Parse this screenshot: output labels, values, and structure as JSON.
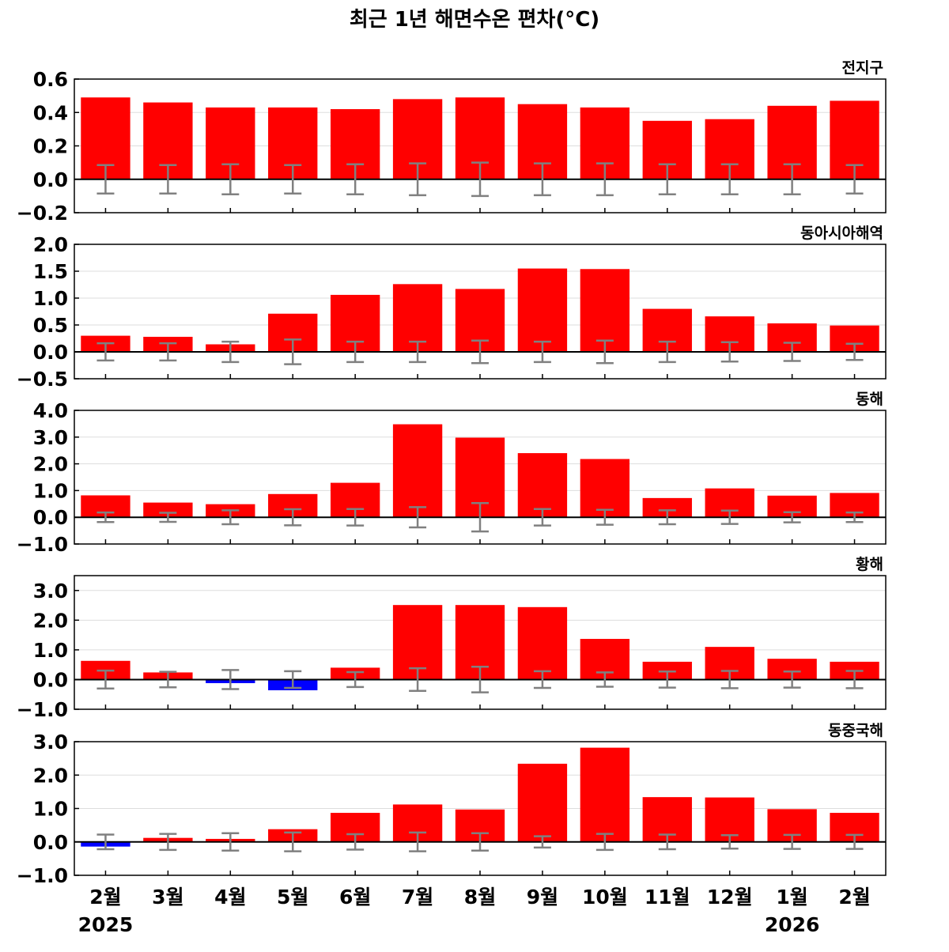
{
  "title": "최근 1년 해면수온 편차(°C)",
  "months": [
    "2월",
    "3월",
    "4월",
    "5월",
    "6월",
    "7월",
    "8월",
    "9월",
    "10월",
    "11월",
    "12월",
    "1월",
    "2월"
  ],
  "year_labels": [
    {
      "index": 0,
      "text": "2025"
    },
    {
      "index": 11,
      "text": "2026"
    }
  ],
  "colors": {
    "positive": "#ff0000",
    "negative": "#0000ff",
    "error_bar": "#808080",
    "zero_line": "#000000",
    "grid": "#dddddd"
  },
  "chart_data": [
    {
      "type": "bar",
      "region": "전지구",
      "categories": [
        "2월",
        "3월",
        "4월",
        "5월",
        "6월",
        "7월",
        "8월",
        "9월",
        "10월",
        "11월",
        "12월",
        "1월",
        "2월"
      ],
      "values": [
        0.49,
        0.46,
        0.43,
        0.43,
        0.42,
        0.48,
        0.49,
        0.45,
        0.43,
        0.35,
        0.36,
        0.44,
        0.47
      ],
      "error_range": [
        0.085,
        0.085,
        0.09,
        0.085,
        0.09,
        0.095,
        0.1,
        0.095,
        0.095,
        0.09,
        0.09,
        0.09,
        0.085
      ],
      "ylim": [
        -0.2,
        0.6
      ],
      "yticks": [
        -0.2,
        0.0,
        0.2,
        0.4,
        0.6
      ],
      "ytick_labels": [
        "−0.2",
        "0.0",
        "0.2",
        "0.4",
        "0.6"
      ],
      "grid": true
    },
    {
      "type": "bar",
      "region": "동아시아해역",
      "categories": [
        "2월",
        "3월",
        "4월",
        "5월",
        "6월",
        "7월",
        "8월",
        "9월",
        "10월",
        "11월",
        "12월",
        "1월",
        "2월"
      ],
      "values": [
        0.3,
        0.28,
        0.14,
        0.71,
        1.06,
        1.26,
        1.17,
        1.55,
        1.54,
        0.8,
        0.66,
        0.53,
        0.49
      ],
      "error_range": [
        0.16,
        0.16,
        0.19,
        0.23,
        0.19,
        0.19,
        0.21,
        0.19,
        0.21,
        0.19,
        0.18,
        0.17,
        0.15
      ],
      "ylim": [
        -0.5,
        2.0
      ],
      "yticks": [
        -0.5,
        0.0,
        0.5,
        1.0,
        1.5,
        2.0
      ],
      "ytick_labels": [
        "−0.5",
        "0.0",
        "0.5",
        "1.0",
        "1.5",
        "2.0"
      ],
      "grid": true
    },
    {
      "type": "bar",
      "region": "동해",
      "categories": [
        "2월",
        "3월",
        "4월",
        "5월",
        "6월",
        "7월",
        "8월",
        "9월",
        "10월",
        "11월",
        "12월",
        "1월",
        "2월"
      ],
      "values": [
        0.82,
        0.55,
        0.49,
        0.87,
        1.29,
        3.48,
        2.98,
        2.4,
        2.18,
        0.72,
        1.08,
        0.81,
        0.91
      ],
      "error_range": [
        0.18,
        0.17,
        0.26,
        0.3,
        0.31,
        0.38,
        0.53,
        0.31,
        0.28,
        0.26,
        0.25,
        0.19,
        0.18
      ],
      "ylim": [
        -1.0,
        4.0
      ],
      "yticks": [
        -1.0,
        0.0,
        1.0,
        2.0,
        3.0,
        4.0
      ],
      "ytick_labels": [
        "−1.0",
        "0.0",
        "1.0",
        "2.0",
        "3.0",
        "4.0"
      ],
      "grid": true
    },
    {
      "type": "bar",
      "region": "황해",
      "categories": [
        "2월",
        "3월",
        "4월",
        "5월",
        "6월",
        "7월",
        "8월",
        "9월",
        "10월",
        "11월",
        "12월",
        "1월",
        "2월"
      ],
      "values": [
        0.63,
        0.24,
        -0.12,
        -0.36,
        0.4,
        2.51,
        2.51,
        2.44,
        1.37,
        0.6,
        1.1,
        0.7,
        0.6
      ],
      "error_range": [
        0.3,
        0.26,
        0.32,
        0.28,
        0.25,
        0.38,
        0.43,
        0.28,
        0.24,
        0.27,
        0.29,
        0.27,
        0.29
      ],
      "ylim": [
        -1.0,
        3.5
      ],
      "yticks": [
        -1.0,
        0.0,
        1.0,
        2.0,
        3.0
      ],
      "ytick_labels": [
        "−1.0",
        "0.0",
        "1.0",
        "2.0",
        "3.0"
      ],
      "grid": true
    },
    {
      "type": "bar",
      "region": "동중국해",
      "categories": [
        "2월",
        "3월",
        "4월",
        "5월",
        "6월",
        "7월",
        "8월",
        "9월",
        "10월",
        "11월",
        "12월",
        "1월",
        "2월"
      ],
      "values": [
        -0.14,
        0.12,
        0.09,
        0.38,
        0.87,
        1.12,
        0.97,
        2.34,
        2.82,
        1.34,
        1.33,
        0.98,
        0.87
      ],
      "error_range": [
        0.22,
        0.24,
        0.26,
        0.28,
        0.23,
        0.28,
        0.26,
        0.17,
        0.24,
        0.22,
        0.2,
        0.21,
        0.21
      ],
      "ylim": [
        -1.0,
        3.0
      ],
      "yticks": [
        -1.0,
        0.0,
        1.0,
        2.0,
        3.0
      ],
      "ytick_labels": [
        "−1.0",
        "0.0",
        "1.0",
        "2.0",
        "3.0"
      ],
      "grid": true
    }
  ]
}
